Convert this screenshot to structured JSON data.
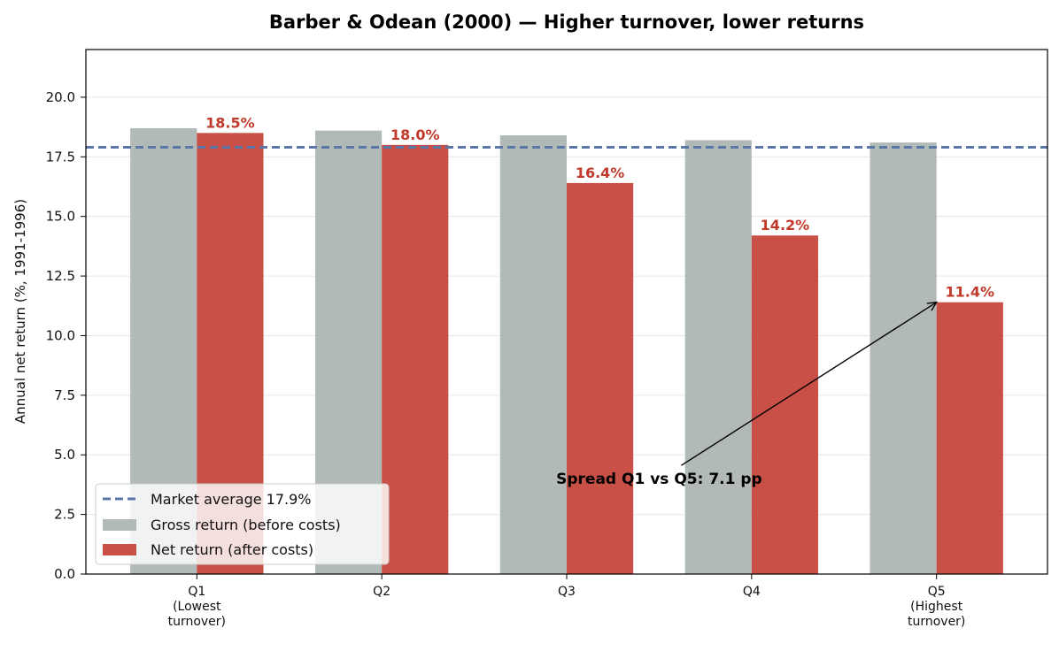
{
  "chart_data": {
    "type": "bar",
    "title": "Barber & Odean (2000) — Higher turnover, lower returns",
    "xlabel": "",
    "ylabel": "Annual net return (%, 1991-1996)",
    "ylim": [
      0,
      22
    ],
    "yticks": [
      0.0,
      2.5,
      5.0,
      7.5,
      10.0,
      12.5,
      15.0,
      17.5,
      20.0
    ],
    "grid": "y",
    "legend_position": "lower-left",
    "categories": [
      [
        "Q1",
        "(Lowest",
        "turnover)"
      ],
      [
        "Q2"
      ],
      [
        "Q3"
      ],
      [
        "Q4"
      ],
      [
        "Q5",
        "(Highest",
        "turnover)"
      ]
    ],
    "series": [
      {
        "name": "Gross return (before costs)",
        "color": "#b2bab8",
        "values": [
          18.7,
          18.6,
          18.4,
          18.2,
          18.1
        ]
      },
      {
        "name": "Net return (after costs)",
        "color": "#c85046",
        "values": [
          18.5,
          18.0,
          16.4,
          14.2,
          11.4
        ]
      }
    ],
    "data_labels": [
      "18.5%",
      "18.0%",
      "16.4%",
      "14.2%",
      "11.4%"
    ],
    "data_label_color": "#c0392b",
    "reference_line": {
      "name": "Market average 17.9%",
      "value": 17.9,
      "color": "#5b77a8",
      "style": "dashed"
    },
    "annotation": {
      "text": "Spread Q1 vs Q5: 7.1 pp",
      "text_at": [
        2.5,
        4.0
      ],
      "arrow_to": [
        4.0,
        11.4
      ]
    }
  }
}
